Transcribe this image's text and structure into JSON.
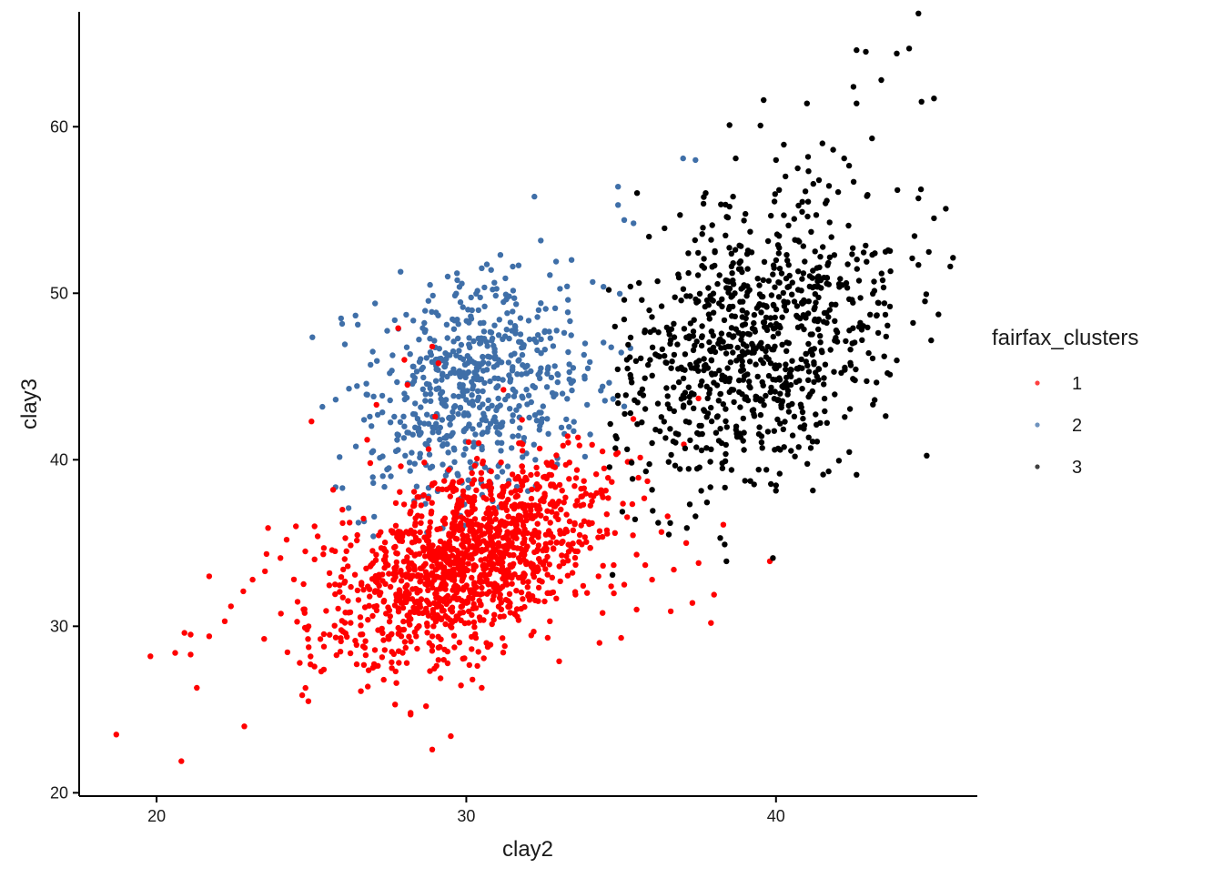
{
  "chart_data": {
    "type": "scatter",
    "title": "",
    "xlabel": "clay2",
    "ylabel": "clay3",
    "xlim": [
      17.5,
      46.5
    ],
    "ylim": [
      19.8,
      66.9
    ],
    "x_ticks": [
      "20",
      "30",
      "40"
    ],
    "y_ticks": [
      "20",
      "30",
      "40",
      "50",
      "60"
    ],
    "x_tick_values": [
      20,
      30,
      40
    ],
    "y_tick_values": [
      20,
      30,
      40,
      50,
      60
    ],
    "grid": false,
    "legend": {
      "title": "fairfax_clusters",
      "placement": "right",
      "entries": [
        "1",
        "2",
        "3"
      ]
    },
    "colors": {
      "1": "#ff0000",
      "2": "#3f6fa8",
      "3": "#000000"
    },
    "series": [
      {
        "name": "1",
        "color": "#ff0000",
        "generator": {
          "n": 1350,
          "cx": 30.0,
          "cy": 34.0,
          "sx": 2.2,
          "sy": 3.0,
          "rho": 0.55
        },
        "points": [
          [
            18.7,
            23.5
          ],
          [
            19.8,
            28.2
          ],
          [
            20.8,
            21.9
          ],
          [
            21.3,
            26.3
          ],
          [
            21.1,
            28.3
          ],
          [
            20.6,
            28.4
          ],
          [
            20.9,
            29.6
          ],
          [
            21.1,
            29.5
          ],
          [
            21.7,
            29.4
          ],
          [
            21.7,
            33.0
          ],
          [
            22.2,
            30.3
          ],
          [
            22.4,
            31.2
          ],
          [
            22.8,
            32.1
          ],
          [
            23.1,
            32.8
          ],
          [
            23.5,
            33.3
          ],
          [
            23.6,
            35.9
          ],
          [
            24.0,
            34.1
          ],
          [
            24.2,
            35.2
          ],
          [
            24.5,
            36.0
          ],
          [
            24.8,
            34.5
          ],
          [
            25.2,
            35.4
          ],
          [
            25.4,
            34.7
          ],
          [
            25.1,
            36.0
          ],
          [
            25.0,
            42.3
          ],
          [
            26.0,
            37.0
          ],
          [
            25.7,
            38.2
          ],
          [
            26.8,
            41.2
          ],
          [
            27.1,
            43.3
          ],
          [
            28.1,
            44.5
          ],
          [
            28.0,
            46.0
          ],
          [
            28.9,
            46.8
          ],
          [
            29.1,
            45.8
          ],
          [
            27.8,
            47.9
          ],
          [
            26.9,
            39.8
          ],
          [
            24.9,
            25.5
          ],
          [
            25.4,
            27.4
          ],
          [
            28.2,
            24.8
          ],
          [
            28.2,
            24.7
          ],
          [
            28.9,
            22.6
          ],
          [
            29.5,
            23.4
          ],
          [
            27.7,
            25.3
          ],
          [
            33.0,
            27.9
          ],
          [
            34.3,
            29.0
          ],
          [
            35.0,
            29.3
          ],
          [
            36.0,
            32.8
          ],
          [
            37.9,
            30.2
          ],
          [
            37.3,
            31.4
          ],
          [
            39.8,
            33.9
          ],
          [
            38.3,
            36.1
          ],
          [
            37.1,
            35.0
          ],
          [
            36.5,
            36.6
          ],
          [
            38.0,
            31.9
          ],
          [
            35.5,
            31.0
          ],
          [
            34.0,
            34.7
          ],
          [
            33.3,
            34.9
          ],
          [
            32.8,
            39.6
          ],
          [
            31.8,
            42.4
          ],
          [
            31.2,
            44.2
          ],
          [
            30.4,
            41.0
          ],
          [
            30.8,
            39.3
          ],
          [
            31.8,
            38.6
          ],
          [
            32.5,
            37.5
          ],
          [
            33.5,
            36.2
          ],
          [
            34.8,
            35.6
          ],
          [
            35.5,
            34.3
          ],
          [
            36.7,
            33.4
          ],
          [
            37.5,
            33.8
          ],
          [
            36.6,
            30.9
          ],
          [
            33.9,
            32.0
          ],
          [
            32.7,
            30.3
          ],
          [
            34.4,
            30.8
          ],
          [
            35.1,
            32.5
          ],
          [
            30.2,
            26.8
          ],
          [
            30.5,
            26.3
          ],
          [
            28.7,
            25.2
          ],
          [
            29.8,
            30.8
          ],
          [
            30.0,
            31.5
          ],
          [
            28.9,
            33.2
          ]
        ]
      },
      {
        "name": "2",
        "color": "#3f6fa8",
        "generator": {
          "n": 620,
          "cx": 30.4,
          "cy": 44.3,
          "sx": 1.9,
          "sy": 3.2,
          "rho": 0.15
        },
        "points": [
          [
            32.2,
            55.8
          ],
          [
            34.9,
            55.3
          ],
          [
            35.1,
            54.4
          ],
          [
            35.4,
            54.2
          ],
          [
            34.9,
            56.4
          ],
          [
            37.0,
            58.1
          ],
          [
            37.4,
            58.0
          ],
          [
            31.1,
            52.3
          ],
          [
            30.8,
            51.4
          ],
          [
            30.5,
            51.5
          ],
          [
            29.7,
            51.2
          ],
          [
            29.4,
            51.0
          ],
          [
            31.5,
            51.6
          ],
          [
            32.9,
            51.9
          ],
          [
            33.4,
            52.0
          ],
          [
            27.9,
            35.4
          ],
          [
            27.0,
            35.4
          ],
          [
            26.7,
            36.3
          ],
          [
            26.2,
            37.1
          ],
          [
            26.0,
            38.3
          ],
          [
            27.3,
            40.2
          ],
          [
            27.5,
            39.5
          ],
          [
            26.7,
            42.4
          ],
          [
            28.4,
            45.3
          ],
          [
            34.4,
            44.4
          ],
          [
            35.1,
            43.2
          ],
          [
            35.3,
            46.7
          ],
          [
            33.8,
            46.3
          ],
          [
            33.9,
            43.3
          ]
        ]
      },
      {
        "name": "3",
        "color": "#000000",
        "generator": {
          "n": 850,
          "cx": 39.3,
          "cy": 46.8,
          "sx": 2.2,
          "sy": 4.3,
          "rho": 0.35
        },
        "points": [
          [
            44.6,
            66.8
          ],
          [
            44.3,
            64.7
          ],
          [
            43.9,
            64.4
          ],
          [
            42.6,
            64.6
          ],
          [
            42.9,
            64.5
          ],
          [
            44.7,
            61.5
          ],
          [
            45.1,
            61.7
          ],
          [
            41.0,
            61.4
          ],
          [
            39.6,
            61.6
          ],
          [
            38.5,
            60.1
          ],
          [
            38.7,
            58.1
          ],
          [
            40.0,
            58.0
          ],
          [
            41.5,
            59.0
          ],
          [
            42.5,
            62.4
          ],
          [
            42.6,
            61.4
          ],
          [
            43.1,
            59.3
          ],
          [
            43.4,
            62.8
          ],
          [
            44.6,
            55.7
          ],
          [
            45.1,
            54.5
          ],
          [
            44.4,
            52.1
          ],
          [
            44.6,
            51.7
          ],
          [
            43.5,
            49.4
          ],
          [
            43.6,
            45.2
          ],
          [
            41.7,
            39.3
          ],
          [
            42.6,
            39.1
          ],
          [
            39.9,
            34.1
          ],
          [
            38.2,
            35.3
          ],
          [
            37.4,
            36.6
          ],
          [
            36.0,
            38.2
          ],
          [
            35.8,
            39.3
          ],
          [
            38.4,
            33.9
          ],
          [
            36.0,
            41.0
          ],
          [
            35.3,
            42.8
          ],
          [
            34.9,
            43.4
          ],
          [
            42.2,
            58.1
          ],
          [
            40.7,
            57.5
          ],
          [
            40.1,
            56.2
          ],
          [
            41.3,
            54.7
          ],
          [
            41.6,
            55.4
          ],
          [
            38.5,
            55.2
          ],
          [
            36.9,
            54.7
          ],
          [
            36.4,
            53.9
          ],
          [
            35.9,
            53.4
          ],
          [
            35.1,
            49.6
          ],
          [
            35.3,
            50.4
          ],
          [
            34.6,
            50.2
          ],
          [
            34.8,
            48.0
          ]
        ]
      }
    ]
  }
}
